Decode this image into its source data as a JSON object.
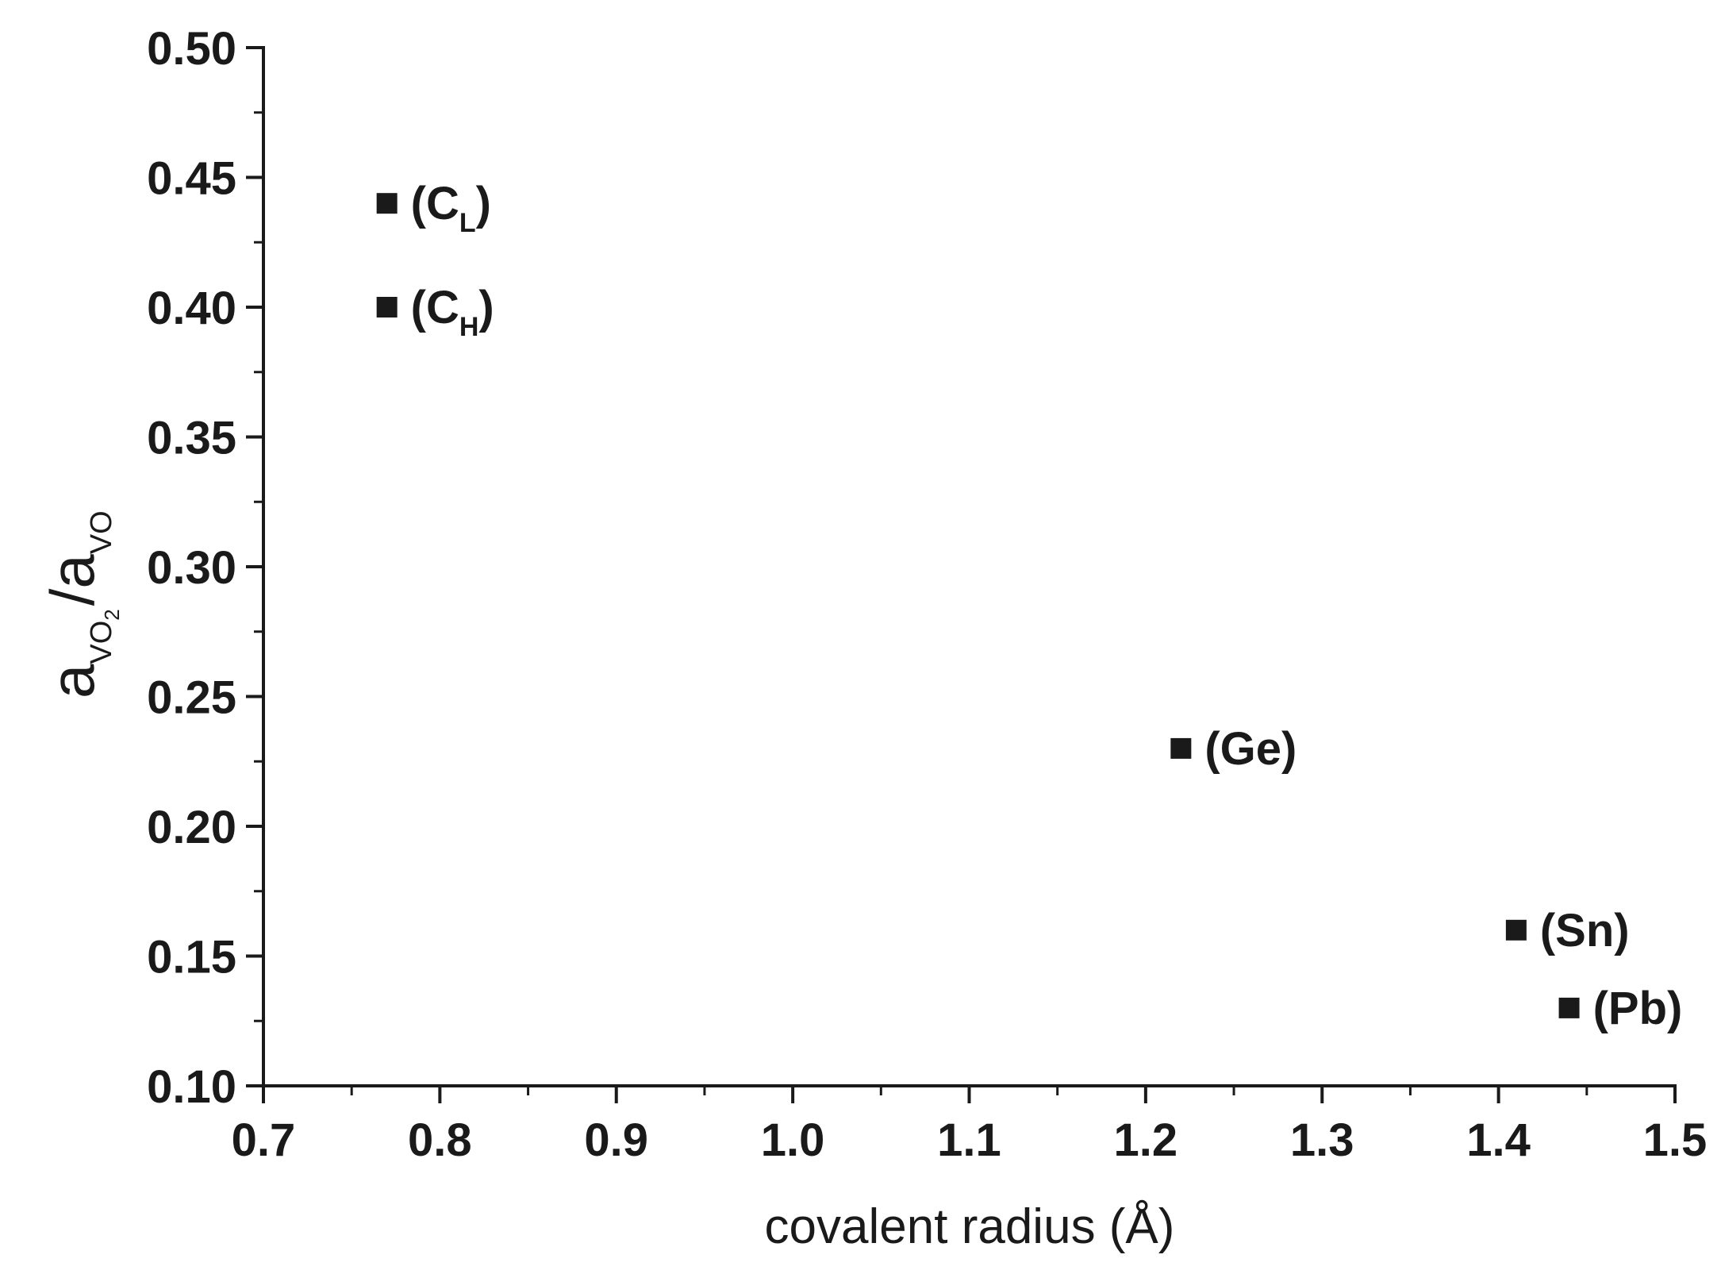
{
  "chart_data": {
    "type": "scatter",
    "xlabel": "covalent radius (Å)",
    "ylabel": {
      "a1": "a",
      "sub1": "VO",
      "sub1_sub": "2",
      "slash": "/a",
      "sub2": "VO"
    },
    "xlim": [
      0.7,
      1.5
    ],
    "ylim": [
      0.1,
      0.5
    ],
    "x_ticks": [
      "0.7",
      "0.8",
      "0.9",
      "1.0",
      "1.1",
      "1.2",
      "1.3",
      "1.4",
      "1.5"
    ],
    "y_ticks": [
      "0.10",
      "0.15",
      "0.20",
      "0.25",
      "0.30",
      "0.35",
      "0.40",
      "0.45",
      "0.50"
    ],
    "grid": false,
    "marker": "square",
    "marker_color": "#1a1a1a",
    "points": [
      {
        "x": 0.77,
        "y": 0.44,
        "label_main": "(C",
        "label_sub": "L",
        "label_end": ")"
      },
      {
        "x": 0.77,
        "y": 0.4,
        "label_main": "(C",
        "label_sub": "H",
        "label_end": ")"
      },
      {
        "x": 1.22,
        "y": 0.23,
        "label_main": "(Ge)",
        "label_sub": "",
        "label_end": ""
      },
      {
        "x": 1.41,
        "y": 0.16,
        "label_main": "(Sn)",
        "label_sub": "",
        "label_end": ""
      },
      {
        "x": 1.44,
        "y": 0.13,
        "label_main": "(Pb)",
        "label_sub": "",
        "label_end": ""
      }
    ]
  }
}
